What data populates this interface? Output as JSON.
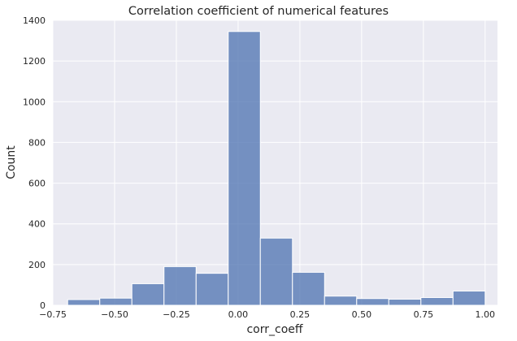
{
  "chart_data": {
    "type": "bar",
    "title": "Correlation coefficient of numerical features",
    "xlabel": "corr_coeff",
    "ylabel": "Count",
    "xlim": [
      -0.75,
      1.05
    ],
    "ylim": [
      0,
      1400
    ],
    "x_ticks": [
      "−0.75",
      "−0.50",
      "−0.25",
      "0.00",
      "0.25",
      "0.50",
      "0.75",
      "1.00"
    ],
    "y_ticks": [
      "0",
      "200",
      "400",
      "600",
      "800",
      "1000",
      "1200",
      "1400"
    ],
    "bins": [
      {
        "x0": -0.69,
        "x1": -0.56,
        "count": 28
      },
      {
        "x0": -0.56,
        "x1": -0.43,
        "count": 35
      },
      {
        "x0": -0.43,
        "x1": -0.3,
        "count": 106
      },
      {
        "x0": -0.3,
        "x1": -0.17,
        "count": 190
      },
      {
        "x0": -0.17,
        "x1": -0.04,
        "count": 157
      },
      {
        "x0": -0.04,
        "x1": 0.09,
        "count": 1345
      },
      {
        "x0": 0.09,
        "x1": 0.22,
        "count": 330
      },
      {
        "x0": 0.22,
        "x1": 0.35,
        "count": 162
      },
      {
        "x0": 0.35,
        "x1": 0.48,
        "count": 45
      },
      {
        "x0": 0.48,
        "x1": 0.61,
        "count": 33
      },
      {
        "x0": 0.61,
        "x1": 0.74,
        "count": 30
      },
      {
        "x0": 0.74,
        "x1": 0.87,
        "count": 38
      },
      {
        "x0": 0.87,
        "x1": 1.0,
        "count": 70
      }
    ],
    "grid": true,
    "colors": {
      "bar": "#4c72b0",
      "background": "#eaeaf2",
      "grid": "#ffffff"
    }
  }
}
